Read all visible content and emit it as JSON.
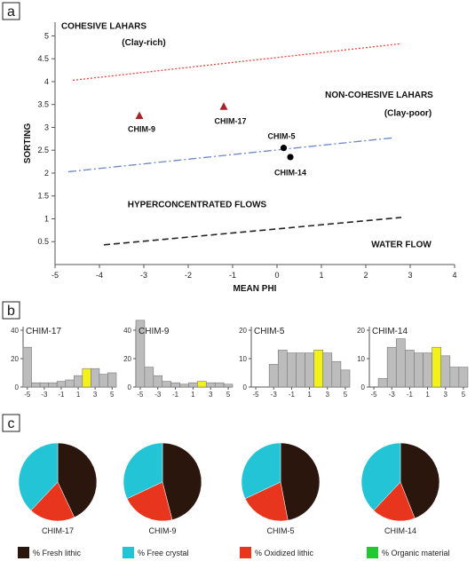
{
  "panel_labels": [
    "a",
    "b",
    "c"
  ],
  "chart_data": [
    {
      "type": "scatter",
      "title": "",
      "xlabel": "MEAN PHI",
      "ylabel": "SORTING",
      "xlim": [
        -5,
        4
      ],
      "ylim": [
        0,
        5.3
      ],
      "xticks": [
        -5,
        -4,
        -3,
        -2,
        -1,
        0,
        1,
        2,
        3,
        4
      ],
      "yticks": [
        0.5,
        1,
        1.5,
        2,
        2.5,
        3,
        3.5,
        4,
        4.5,
        5
      ],
      "region_labels": [
        {
          "text": "COHESIVE LAHARS",
          "x": -3.9,
          "y": 5.15
        },
        {
          "text": "(Clay-rich)",
          "x": -3.0,
          "y": 4.8
        },
        {
          "text": "NON-COHESIVE LAHARS",
          "x": 2.3,
          "y": 3.65
        },
        {
          "text": "(Clay-poor)",
          "x": 2.95,
          "y": 3.25
        },
        {
          "text": "HYPERCONCENTRATED FLOWS",
          "x": -1.8,
          "y": 1.25
        },
        {
          "text": "WATER FLOW",
          "x": 2.8,
          "y": 0.38
        }
      ],
      "lines": [
        {
          "color": "#e8453c",
          "style": "dotted",
          "x": [
            -4.6,
            2.8
          ],
          "y": [
            4.03,
            4.83
          ]
        },
        {
          "color": "#6a86c8",
          "style": "dashdot",
          "x": [
            -4.7,
            2.6
          ],
          "y": [
            2.03,
            2.77
          ]
        },
        {
          "color": "#222222",
          "style": "dashed",
          "x": [
            -3.9,
            2.8
          ],
          "y": [
            0.43,
            1.03
          ]
        }
      ],
      "points": [
        {
          "label": "CHIM-9",
          "x": -3.1,
          "y": 3.25,
          "marker": "triangle",
          "color": "#a8242a",
          "lx": -3.05,
          "ly": 2.9
        },
        {
          "label": "CHIM-17",
          "x": -1.2,
          "y": 3.45,
          "marker": "triangle",
          "color": "#a8242a",
          "lx": -1.05,
          "ly": 3.08
        },
        {
          "label": "CHIM-5",
          "x": 0.15,
          "y": 2.55,
          "marker": "circle",
          "color": "#000000",
          "lx": 0.1,
          "ly": 2.75
        },
        {
          "label": "CHIM-14",
          "x": 0.3,
          "y": 2.35,
          "marker": "circle",
          "color": "#000000",
          "lx": 0.3,
          "ly": 1.95
        }
      ]
    },
    {
      "type": "bar",
      "title": "CHIM-17",
      "categories": [
        -5,
        -4,
        -3,
        -2,
        -1,
        0,
        1,
        2,
        3,
        4,
        5
      ],
      "values": [
        28,
        3,
        3,
        3,
        4,
        5,
        8,
        13,
        13,
        9,
        10
      ],
      "highlight_index": 7,
      "ylim": [
        0,
        40
      ],
      "yticks": [
        0,
        20,
        40
      ],
      "xticks": [
        -5,
        -3,
        -1,
        1,
        3,
        5
      ],
      "bar_color": "#bcbcbc",
      "highlight_color": "#f2f21a"
    },
    {
      "type": "bar",
      "title": "CHIM-9",
      "categories": [
        -5,
        -4,
        -3,
        -2,
        -1,
        0,
        1,
        2,
        3,
        4,
        5
      ],
      "values": [
        47,
        14,
        8,
        4,
        3,
        2,
        3,
        4,
        3,
        3,
        2
      ],
      "highlight_index": 7,
      "ylim": [
        0,
        40
      ],
      "yticks": [
        0,
        20,
        40
      ],
      "xticks": [
        -5,
        -3,
        -1,
        1,
        3,
        5
      ],
      "bar_color": "#bcbcbc",
      "highlight_color": "#f2f21a"
    },
    {
      "type": "bar",
      "title": "CHIM-5",
      "categories": [
        -3,
        -2,
        -1,
        0,
        1,
        2,
        3,
        4,
        5
      ],
      "values": [
        8,
        13,
        12,
        12,
        12,
        13,
        12,
        9,
        6
      ],
      "highlight_index": 5,
      "ylim": [
        0,
        20
      ],
      "yticks": [
        0,
        10,
        20
      ],
      "xticks": [
        -5,
        -3,
        -1,
        1,
        3,
        5
      ],
      "bar_color": "#bcbcbc",
      "highlight_color": "#f2f21a"
    },
    {
      "type": "bar",
      "title": "CHIM-14",
      "categories": [
        -4,
        -3,
        -2,
        -1,
        0,
        1,
        2,
        3,
        4,
        5
      ],
      "values": [
        3,
        14,
        17,
        13,
        12,
        12,
        14,
        11,
        7,
        7
      ],
      "highlight_index": 6,
      "ylim": [
        0,
        20
      ],
      "yticks": [
        0,
        10,
        20
      ],
      "xticks": [
        -5,
        -3,
        -1,
        1,
        3,
        5
      ],
      "bar_color": "#bcbcbc",
      "highlight_color": "#f2f21a"
    },
    {
      "type": "pie",
      "title": "CHIM-17",
      "slices": [
        {
          "name": "% Fresh lithic",
          "value": 43
        },
        {
          "name": "% Oxidized lithic",
          "value": 19
        },
        {
          "name": "% Free crystal",
          "value": 38
        },
        {
          "name": "% Organic material",
          "value": 0
        }
      ]
    },
    {
      "type": "pie",
      "title": "CHIM-9",
      "slices": [
        {
          "name": "% Fresh lithic",
          "value": 46
        },
        {
          "name": "% Oxidized lithic",
          "value": 22
        },
        {
          "name": "% Free crystal",
          "value": 32
        },
        {
          "name": "% Organic material",
          "value": 0
        }
      ]
    },
    {
      "type": "pie",
      "title": "CHIM-5",
      "slices": [
        {
          "name": "% Fresh lithic",
          "value": 47
        },
        {
          "name": "% Oxidized lithic",
          "value": 21
        },
        {
          "name": "% Free crystal",
          "value": 32
        },
        {
          "name": "% Organic material",
          "value": 0
        }
      ]
    },
    {
      "type": "pie",
      "title": "CHIM-14",
      "slices": [
        {
          "name": "% Fresh lithic",
          "value": 44
        },
        {
          "name": "% Oxidized lithic",
          "value": 18
        },
        {
          "name": "% Free crystal",
          "value": 38
        },
        {
          "name": "% Organic material",
          "value": 0
        }
      ]
    }
  ],
  "legend": [
    {
      "label": "% Fresh lithic",
      "color": "#2a160c"
    },
    {
      "label": "% Free crystal",
      "color": "#22c4d6"
    },
    {
      "label": "% Oxidized lithic",
      "color": "#e8361e"
    },
    {
      "label": "% Organic material",
      "color": "#22c832"
    }
  ]
}
